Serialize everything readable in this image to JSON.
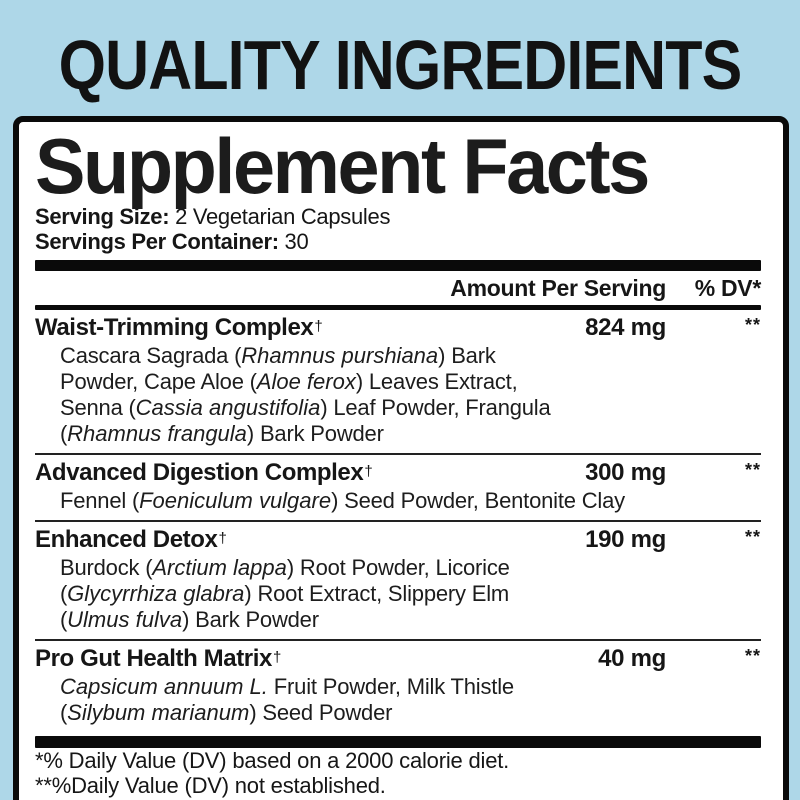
{
  "page": {
    "title": "QUALITY INGREDIENTS"
  },
  "colors": {
    "background": "#aed7e8",
    "panel_background": "#ffffff",
    "border": "#0a0a0a",
    "text": "#161616"
  },
  "panel": {
    "title": "Supplement Facts",
    "serving_size_label": "Serving Size:",
    "serving_size_value": "2 Vegetarian Capsules",
    "servings_label": "Servings Per Container:",
    "servings_value": "30",
    "columns": {
      "amount": "Amount Per Serving",
      "dv": "% DV*"
    },
    "rows": [
      {
        "name": "Waist-Trimming Complex",
        "dagger": "†",
        "amount": "824 mg",
        "dv": "**",
        "desc_lines": [
          "Cascara Sagrada (*Rhamnus purshiana*) Bark",
          "Powder, Cape Aloe (*Aloe ferox*) Leaves Extract,",
          "Senna (*Cassia angustifolia*) Leaf Powder, Frangula",
          "(*Rhamnus frangula*) Bark Powder"
        ]
      },
      {
        "name": "Advanced Digestion Complex",
        "dagger": "†",
        "amount": "300 mg",
        "dv": "**",
        "desc_lines": [
          "Fennel (*Foeniculum vulgare*) Seed Powder, Bentonite Clay"
        ]
      },
      {
        "name": "Enhanced Detox",
        "dagger": "†",
        "amount": "190 mg",
        "dv": "**",
        "desc_lines": [
          "Burdock (*Arctium lappa*) Root Powder, Licorice",
          "(*Glycyrrhiza glabra*) Root Extract, Slippery Elm",
          "(*Ulmus fulva*) Bark Powder"
        ]
      },
      {
        "name": "Pro Gut Health Matrix",
        "dagger": "†",
        "amount": "40 mg",
        "dv": "**",
        "desc_lines": [
          "*Capsicum annuum L.* Fruit Powder, Milk Thistle",
          "(*Silybum marianum*) Seed Powder"
        ]
      }
    ],
    "footnotes": [
      "*% Daily Value (DV) based on a 2000 calorie diet.",
      "**%Daily Value (DV) not established."
    ]
  }
}
